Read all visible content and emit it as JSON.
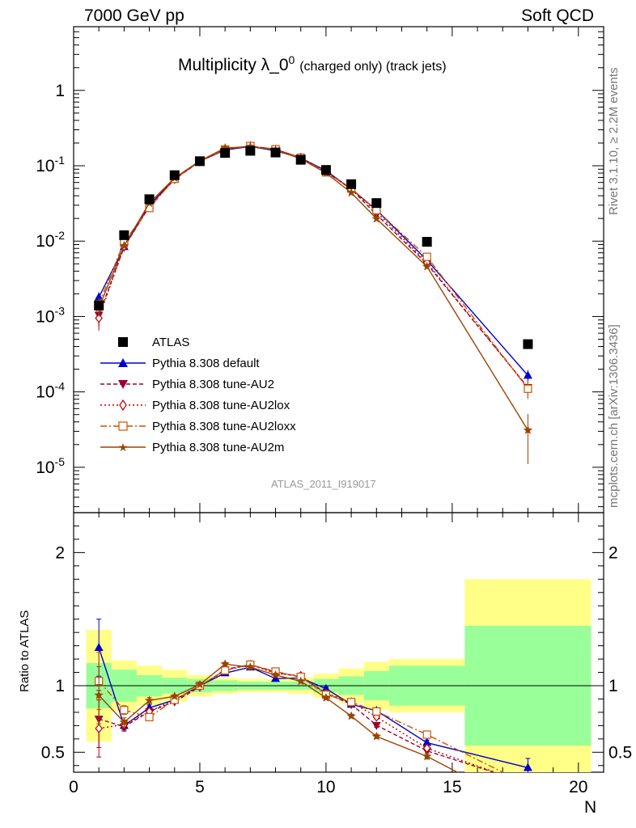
{
  "header": {
    "left": "7000 GeV pp",
    "right": "Soft QCD"
  },
  "side_labels": {
    "rivet": "Rivet 3.1.10, ≥ 2.2M events",
    "mcplots": "mcplots.cern.ch [arXiv:1306.3436]"
  },
  "chart_data": {
    "type": "scatter",
    "title_main": "Multiplicity λ_0",
    "title_sup": "0",
    "title_small": "(charged only) (track jets)",
    "analysis_id": "ATLAS_2011_I919017",
    "xlabel": "N",
    "ylabel_ratio": "Ratio to ATLAS",
    "xlim": [
      0,
      21
    ],
    "ylim_main": [
      2.5e-06,
      7
    ],
    "ylim_ratio": [
      0.35,
      2.3
    ],
    "yscale_main": "log",
    "x_ticks": [
      "0",
      "5",
      "10",
      "15",
      "20"
    ],
    "y_ticks_main": [
      "1",
      "10^-1",
      "10^-2",
      "10^-3",
      "10^-4",
      "10^-5"
    ],
    "y_ticks_ratio": [
      "0.5",
      "1",
      "2"
    ],
    "x": [
      1,
      2,
      3,
      4,
      5,
      6,
      7,
      8,
      9,
      10,
      11,
      12,
      14,
      18
    ],
    "bin_edges": [
      0.5,
      1.5,
      2.5,
      3.5,
      4.5,
      5.5,
      6.5,
      7.5,
      8.5,
      9.5,
      10.5,
      11.5,
      12.5,
      15.5,
      20.5
    ],
    "data": {
      "name": "ATLAS",
      "values": [
        0.0014,
        0.012,
        0.036,
        0.075,
        0.115,
        0.148,
        0.158,
        0.15,
        0.12,
        0.088,
        0.057,
        0.032,
        0.0098,
        0.00043
      ],
      "band_green": [
        0.17,
        0.12,
        0.08,
        0.06,
        0.05,
        0.04,
        0.03,
        0.03,
        0.03,
        0.05,
        0.07,
        0.11,
        0.15,
        0.45
      ],
      "band_yellow": [
        0.42,
        0.19,
        0.15,
        0.12,
        0.08,
        0.06,
        0.05,
        0.05,
        0.06,
        0.09,
        0.13,
        0.18,
        0.2,
        0.8
      ]
    },
    "series": [
      {
        "name": "Pythia 8.308 default",
        "color": "#0000cc",
        "marker": "triangle-up",
        "dash": "",
        "values": [
          0.0018,
          0.0084,
          0.03,
          0.067,
          0.115,
          0.162,
          0.18,
          0.158,
          0.127,
          0.086,
          0.049,
          0.026,
          0.0056,
          0.000165
        ],
        "errors": [
          0.0003,
          0.0004,
          0.0008,
          0.001,
          0.0015,
          0.002,
          0.002,
          0.002,
          0.0015,
          0.0012,
          0.0008,
          0.0005,
          0.0002,
          3e-05
        ]
      },
      {
        "name": "Pythia 8.308 tune-AU2",
        "color": "#990033",
        "marker": "triangle-down",
        "dash": "5,3",
        "values": [
          0.00105,
          0.0083,
          0.029,
          0.066,
          0.114,
          0.166,
          0.183,
          0.165,
          0.128,
          0.083,
          0.049,
          0.0225,
          0.005,
          0.000115
        ],
        "errors": [
          0.0003,
          0.0004,
          0.0008,
          0.001,
          0.0015,
          0.002,
          0.002,
          0.002,
          0.0015,
          0.0012,
          0.0008,
          0.0005,
          0.0002,
          3e-05
        ]
      },
      {
        "name": "Pythia 8.308 tune-AU2lox",
        "color": "#bb0000",
        "marker": "diamond-open",
        "dash": "2,3",
        "values": [
          0.00095,
          0.0085,
          0.029,
          0.067,
          0.114,
          0.165,
          0.183,
          0.164,
          0.129,
          0.083,
          0.05,
          0.0245,
          0.0052,
          0.000113
        ],
        "errors": [
          0.0003,
          0.0004,
          0.0008,
          0.001,
          0.0015,
          0.002,
          0.002,
          0.002,
          0.0015,
          0.0012,
          0.0008,
          0.0005,
          0.0002,
          3e-05
        ]
      },
      {
        "name": "Pythia 8.308 tune-AU2loxx",
        "color": "#cc5500",
        "marker": "square-open",
        "dash": "8,3,2,3",
        "values": [
          0.00145,
          0.0098,
          0.0275,
          0.067,
          0.115,
          0.165,
          0.183,
          0.166,
          0.128,
          0.082,
          0.05,
          0.0258,
          0.0062,
          0.00011
        ],
        "errors": [
          0.0003,
          0.0004,
          0.0008,
          0.001,
          0.0015,
          0.002,
          0.002,
          0.002,
          0.0015,
          0.0012,
          0.0008,
          0.0005,
          0.0002,
          3e-05
        ]
      },
      {
        "name": "Pythia 8.308 tune-AU2m",
        "color": "#994400",
        "marker": "star",
        "dash": "",
        "values": [
          0.0013,
          0.0087,
          0.032,
          0.069,
          0.116,
          0.172,
          0.18,
          0.162,
          0.124,
          0.08,
          0.044,
          0.0198,
          0.0046,
          3.1e-05
        ],
        "errors": [
          0.0003,
          0.0004,
          0.0008,
          0.001,
          0.0015,
          0.002,
          0.002,
          0.002,
          0.0015,
          0.0012,
          0.0008,
          0.0005,
          0.0002,
          2e-05
        ]
      }
    ]
  }
}
